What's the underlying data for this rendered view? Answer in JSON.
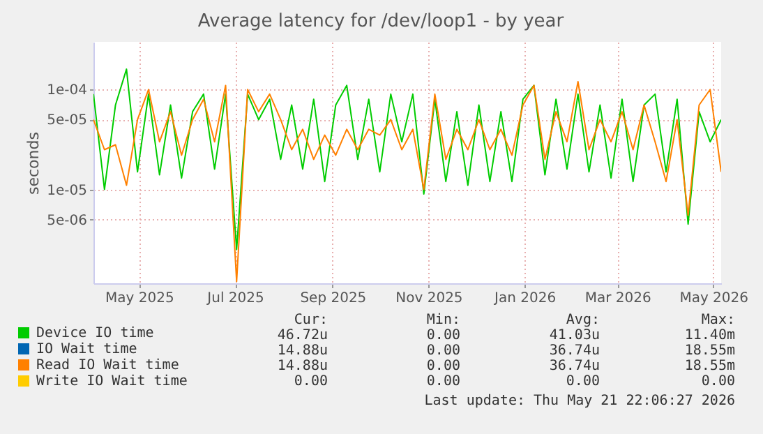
{
  "chart_data": {
    "type": "line",
    "title": "Average latency for /dev/loop1 - by year",
    "ylabel": "seconds",
    "log": true,
    "grid": true,
    "legend": "bottom",
    "marker": "none",
    "line_style": "solid",
    "x": [
      "2025-04-17",
      "2025-04-24",
      "2025-05-01",
      "2025-05-08",
      "2025-05-15",
      "2025-05-22",
      "2025-05-29",
      "2025-06-05",
      "2025-06-12",
      "2025-06-19",
      "2025-06-26",
      "2025-07-03",
      "2025-07-10",
      "2025-07-17",
      "2025-07-24",
      "2025-07-31",
      "2025-08-07",
      "2025-08-14",
      "2025-08-21",
      "2025-08-28",
      "2025-09-04",
      "2025-09-11",
      "2025-09-18",
      "2025-09-25",
      "2025-10-02",
      "2025-10-09",
      "2025-10-16",
      "2025-10-23",
      "2025-10-30",
      "2025-11-06",
      "2025-11-13",
      "2025-11-20",
      "2025-11-27",
      "2025-12-04",
      "2025-12-11",
      "2025-12-18",
      "2025-12-25",
      "2026-01-01",
      "2026-01-08",
      "2026-01-15",
      "2026-01-22",
      "2026-01-29",
      "2026-02-05",
      "2026-02-12",
      "2026-02-19",
      "2026-02-26",
      "2026-03-05",
      "2026-03-12",
      "2026-03-19",
      "2026-03-26",
      "2026-04-02",
      "2026-04-09",
      "2026-04-16",
      "2026-04-23",
      "2026-04-30",
      "2026-05-07",
      "2026-05-14",
      "2026-05-21"
    ],
    "xlim": [
      "2025-04-17",
      "2026-05-21"
    ],
    "xticks": [
      {
        "value": "2025-05-16",
        "label": "May 2025"
      },
      {
        "value": "2025-07-16",
        "label": "Jul 2025"
      },
      {
        "value": "2025-09-16",
        "label": "Sep 2025"
      },
      {
        "value": "2025-11-16",
        "label": "Nov 2025"
      },
      {
        "value": "2026-01-16",
        "label": "Jan 2026"
      },
      {
        "value": "2026-03-16",
        "label": "Mar 2026"
      },
      {
        "value": "2026-05-16",
        "label": "May 2026"
      }
    ],
    "ylim": [
      1.15e-06,
      0.0003
    ],
    "yticks": [
      {
        "value": 5e-06,
        "label": "5e-06"
      },
      {
        "value": 1e-05,
        "label": "1e-05"
      },
      {
        "value": 5e-05,
        "label": "5e-05"
      },
      {
        "value": 0.0001,
        "label": "1e-04"
      }
    ],
    "series": [
      {
        "name": "Device IO time",
        "color": "#00cc00",
        "values": [
          9e-05,
          1e-05,
          7e-05,
          0.00016,
          1.5e-05,
          9e-05,
          1.4e-05,
          7e-05,
          1.3e-05,
          6e-05,
          9e-05,
          1.6e-05,
          9e-05,
          2.5e-06,
          9e-05,
          5e-05,
          8e-05,
          2e-05,
          7e-05,
          1.6e-05,
          8e-05,
          1.2e-05,
          7e-05,
          0.00011,
          2e-05,
          8e-05,
          1.5e-05,
          9e-05,
          3e-05,
          9e-05,
          9e-06,
          8e-05,
          1.2e-05,
          6e-05,
          1.1e-05,
          7e-05,
          1.2e-05,
          6e-05,
          1.2e-05,
          8e-05,
          0.00011,
          1.4e-05,
          8e-05,
          1.6e-05,
          9e-05,
          1.5e-05,
          7e-05,
          1.3e-05,
          8e-05,
          1.2e-05,
          7e-05,
          9e-05,
          1.5e-05,
          8e-05,
          4.5e-06,
          6e-05,
          3e-05,
          5e-05
        ]
      },
      {
        "name": "IO Wait time",
        "color": "#0066b3",
        "values": [
          null,
          null,
          null,
          null,
          null,
          null,
          null,
          null,
          null,
          null,
          null,
          null,
          null,
          null,
          null,
          null,
          null,
          null,
          null,
          null,
          null,
          null,
          null,
          null,
          null,
          null,
          null,
          null,
          null,
          null,
          null,
          null,
          null,
          null,
          null,
          null,
          null,
          null,
          null,
          null,
          null,
          null,
          null,
          null,
          null,
          null,
          null,
          null,
          null,
          null,
          null,
          null,
          null,
          null,
          null,
          null,
          null,
          null
        ]
      },
      {
        "name": "Read IO Wait time",
        "color": "#ff8000",
        "values": [
          5e-05,
          2.5e-05,
          2.8e-05,
          1.1e-05,
          5e-05,
          0.0001,
          3e-05,
          6e-05,
          2.2e-05,
          5e-05,
          8e-05,
          3e-05,
          0.00011,
          1.2e-06,
          0.0001,
          6e-05,
          9e-05,
          5e-05,
          2.5e-05,
          4e-05,
          2e-05,
          3.5e-05,
          2.2e-05,
          4e-05,
          2.5e-05,
          4e-05,
          3.5e-05,
          5e-05,
          2.5e-05,
          4e-05,
          1e-05,
          9e-05,
          2e-05,
          4e-05,
          2.5e-05,
          5e-05,
          2.5e-05,
          4e-05,
          2.2e-05,
          7e-05,
          0.00011,
          2e-05,
          6e-05,
          3e-05,
          0.00012,
          2.5e-05,
          5e-05,
          3e-05,
          6e-05,
          2.5e-05,
          7e-05,
          3e-05,
          1.2e-05,
          5e-05,
          5.5e-06,
          7e-05,
          0.0001,
          1.5e-05
        ]
      },
      {
        "name": "Write IO Wait time",
        "color": "#ffcc00",
        "values": [
          null,
          null,
          null,
          null,
          null,
          null,
          null,
          null,
          null,
          null,
          null,
          null,
          null,
          null,
          null,
          null,
          null,
          null,
          null,
          null,
          null,
          null,
          null,
          null,
          null,
          null,
          null,
          null,
          null,
          null,
          null,
          null,
          null,
          null,
          null,
          null,
          null,
          null,
          null,
          null,
          null,
          null,
          null,
          null,
          null,
          null,
          null,
          null,
          null,
          null,
          null,
          null,
          null,
          null,
          null,
          null,
          null,
          null
        ]
      }
    ],
    "annotations": [
      "Cur:",
      "Min:",
      "Avg:",
      "Max:",
      "46.72u",
      "0.00",
      "41.03u",
      "11.40m",
      "14.88u",
      "0.00",
      "36.74u",
      "18.55m",
      "14.88u",
      "0.00",
      "36.74u",
      "18.55m",
      "0.00",
      "0.00",
      "0.00",
      "0.00",
      "Last update: Thu May 21 22:06:27 2026"
    ]
  }
}
